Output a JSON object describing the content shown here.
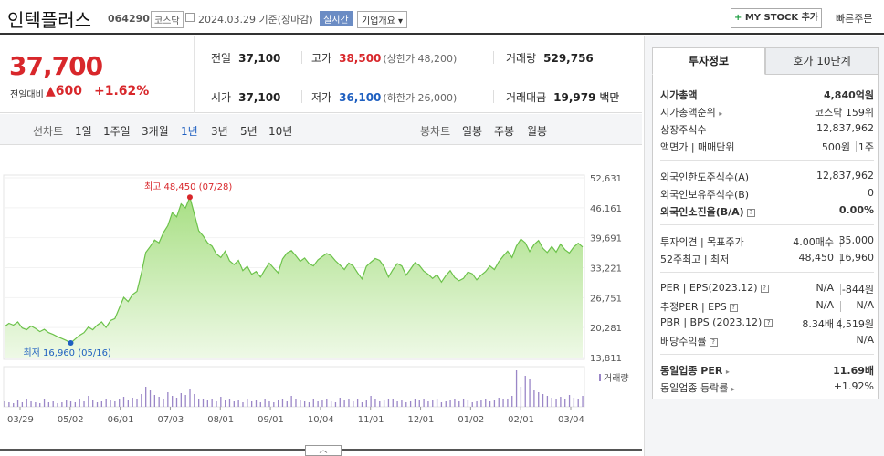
{
  "header": {
    "name": "인텍플러스",
    "code": "064290",
    "market": "코스닥",
    "date": "2024.03.29 기준(장마감)",
    "realtime": "실시간",
    "overview": "기업개요 ▾",
    "mystock": "MY STOCK 추가",
    "mystock_plus": "+",
    "quick_order": "빠른주문"
  },
  "price": {
    "current": "37,700",
    "change_label": "전일대비",
    "change": "▲600",
    "change_pct": "+1.62%",
    "prev_close_label": "전일",
    "prev_close": "37,100",
    "high_label": "고가",
    "high": "38,500",
    "upper_limit": "(상한가 48,200)",
    "volume_label": "거래량",
    "volume": "529,756",
    "open_label": "시가",
    "open": "37,100",
    "low_label": "저가",
    "low": "36,100",
    "lower_limit": "(하한가 26,000)",
    "amount_label": "거래대금",
    "amount": "19,979",
    "amount_unit": "백만"
  },
  "period": {
    "line_label": "선차트",
    "line_items": [
      "1일",
      "1주일",
      "3개월",
      "1년",
      "3년",
      "5년",
      "10년"
    ],
    "active": "1년",
    "candle_label": "봉차트",
    "candle_items": [
      "일봉",
      "주봉",
      "월봉"
    ]
  },
  "chart_data": {
    "type": "area",
    "x_ticks": [
      "03/29",
      "05/02",
      "06/01",
      "07/03",
      "08/01",
      "09/01",
      "10/04",
      "11/01",
      "12/01",
      "01/02",
      "02/01",
      "03/04"
    ],
    "y_ticks": [
      "52,631",
      "46,161",
      "39,691",
      "33,221",
      "26,751",
      "20,281",
      "13,811"
    ],
    "ylim": [
      13811,
      52631
    ],
    "max_annotation": "최고 48,450 (07/28)",
    "min_annotation": "최저 16,960 (05/16)",
    "volume_label": "거래량",
    "values": [
      20500,
      21200,
      20800,
      21500,
      20200,
      19800,
      20600,
      20100,
      19400,
      19900,
      19200,
      18800,
      18300,
      17900,
      17500,
      16960,
      17800,
      18600,
      19200,
      20400,
      19800,
      20800,
      21500,
      20300,
      21800,
      22200,
      24500,
      26800,
      25900,
      27400,
      28100,
      32000,
      36500,
      37800,
      39200,
      38600,
      40800,
      42300,
      45100,
      44200,
      47000,
      46100,
      48450,
      44800,
      41200,
      40100,
      38600,
      37900,
      36200,
      35400,
      36800,
      34700,
      33900,
      34800,
      32600,
      33500,
      31800,
      32400,
      31200,
      32800,
      34200,
      33100,
      32100,
      35100,
      36400,
      36900,
      35800,
      34600,
      35300,
      34100,
      33600,
      34900,
      35600,
      36300,
      35800,
      34700,
      33800,
      32800,
      34200,
      33600,
      32100,
      30800,
      33500,
      34400,
      35200,
      34800,
      33400,
      31200,
      32800,
      34100,
      33600,
      31600,
      32900,
      34300,
      33700,
      32500,
      31800,
      30900,
      31700,
      30100,
      31500,
      32600,
      31100,
      30400,
      30900,
      32300,
      31900,
      30600,
      31600,
      32400,
      33600,
      32800,
      34500,
      35700,
      36800,
      35400,
      37900,
      39400,
      38600,
      36700,
      38200,
      39100,
      37400,
      36500,
      37800,
      36600,
      38300,
      37100,
      36400,
      37700,
      38500,
      37700
    ],
    "volume": [
      6,
      5,
      4,
      7,
      5,
      8,
      6,
      5,
      4,
      9,
      5,
      6,
      4,
      5,
      7,
      6,
      5,
      8,
      6,
      12,
      7,
      5,
      6,
      9,
      7,
      6,
      8,
      11,
      7,
      10,
      9,
      14,
      22,
      18,
      13,
      11,
      9,
      16,
      12,
      10,
      15,
      13,
      19,
      14,
      9,
      8,
      7,
      9,
      6,
      11,
      7,
      8,
      6,
      7,
      5,
      9,
      6,
      7,
      5,
      8,
      6,
      5,
      7,
      9,
      6,
      12,
      8,
      7,
      6,
      5,
      8,
      6,
      7,
      9,
      6,
      5,
      10,
      7,
      8,
      6,
      9,
      5,
      7,
      12,
      8,
      6,
      7,
      9,
      8,
      6,
      7,
      5,
      6,
      8,
      7,
      9,
      6,
      7,
      8,
      5,
      6,
      7,
      8,
      6,
      9,
      7,
      5,
      6,
      7,
      8,
      6,
      7,
      10,
      8,
      9,
      12,
      40,
      22,
      34,
      30,
      18,
      16,
      14,
      12,
      10,
      9,
      11,
      8,
      13,
      10,
      9,
      12
    ]
  },
  "panel": {
    "tab_active": "투자정보",
    "tab_other": "호가 10단계",
    "rows": {
      "market_cap_label": "시가총액",
      "market_cap": "4,840억원",
      "cap_rank_label": "시가총액순위",
      "cap_rank": "코스닥 159위",
      "shares_label": "상장주식수",
      "shares": "12,837,962",
      "par_label": "액면가 | 매매단위",
      "par": "500원",
      "unit": "1주",
      "foreign_limit_label": "외국인한도주식수(A)",
      "foreign_limit": "12,837,962",
      "foreign_hold_label": "외국인보유주식수(B)",
      "foreign_hold": "0",
      "foreign_ratio_label": "외국인소진율(B/A)",
      "foreign_ratio": "0.00%",
      "opinion_label": "투자의견 | 목표주가",
      "opinion": "4.00매수",
      "target": "35,000",
      "range_label": "52주최고 | 최저",
      "high52": "48,450",
      "low52": "16,960",
      "per_label": "PER | EPS(2023.12)",
      "per": "N/A",
      "eps": "-844원",
      "est_label": "추정PER | EPS",
      "est_per": "N/A",
      "est_eps": "N/A",
      "pbr_label": "PBR | BPS (2023.12)",
      "pbr": "8.34배",
      "bps": "4,519원",
      "div_label": "배당수익률",
      "div": "N/A",
      "ind_per_label": "동일업종 PER",
      "ind_per": "11.69배",
      "ind_chg_label": "동일업종 등락률",
      "ind_chg": "+1.92%"
    }
  },
  "colors": {
    "up": "#d8272b",
    "down": "#1e5fc0",
    "area": "#b7e39a",
    "line": "#6cc24a"
  }
}
